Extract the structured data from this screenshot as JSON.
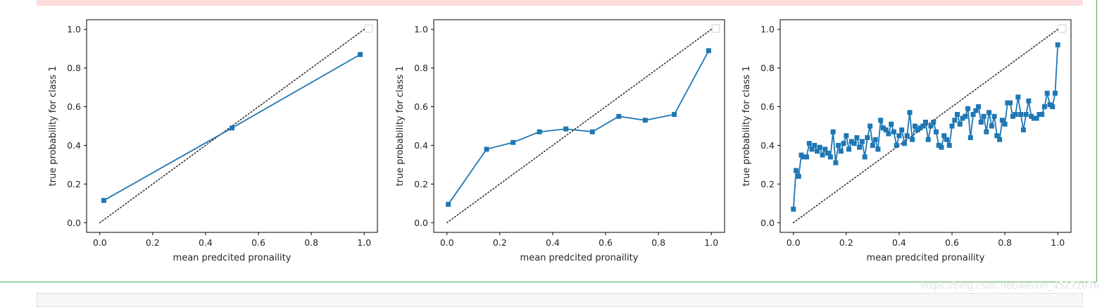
{
  "watermark": "https://blog.csdn.net/weixin_45271076",
  "colors": {
    "series": "#1f77b4",
    "reference": "#333333",
    "frame": "#4caf50",
    "warning": "#fddddd"
  },
  "chart_data": [
    {
      "type": "line",
      "xlabel": "mean predcited pronaility",
      "ylabel": "true probability for class 1",
      "xlim": [
        -0.05,
        1.05
      ],
      "ylim": [
        -0.05,
        1.05
      ],
      "xticks": [
        "0.0",
        "0.2",
        "0.4",
        "0.6",
        "0.8",
        "1.0"
      ],
      "yticks": [
        "0.0",
        "0.2",
        "0.4",
        "0.6",
        "0.8",
        "1.0"
      ],
      "legend": "top-right (empty)",
      "reference_line": {
        "style": "dotted",
        "x": [
          0,
          1
        ],
        "y": [
          0,
          1
        ]
      },
      "series": [
        {
          "marker": "square",
          "x": [
            0.015,
            0.5,
            0.985
          ],
          "y": [
            0.115,
            0.49,
            0.87
          ]
        }
      ]
    },
    {
      "type": "line",
      "xlabel": "mean predcited pronaility",
      "ylabel": "true probability for class 1",
      "xlim": [
        -0.05,
        1.05
      ],
      "ylim": [
        -0.05,
        1.05
      ],
      "xticks": [
        "0.0",
        "0.2",
        "0.4",
        "0.6",
        "0.8",
        "1.0"
      ],
      "yticks": [
        "0.0",
        "0.2",
        "0.4",
        "0.6",
        "0.8",
        "1.0"
      ],
      "legend": "top-right (empty)",
      "reference_line": {
        "style": "dotted",
        "x": [
          0,
          1
        ],
        "y": [
          0,
          1
        ]
      },
      "series": [
        {
          "marker": "square",
          "x": [
            0.005,
            0.15,
            0.25,
            0.35,
            0.45,
            0.55,
            0.65,
            0.75,
            0.86,
            0.99
          ],
          "y": [
            0.095,
            0.38,
            0.415,
            0.47,
            0.485,
            0.47,
            0.55,
            0.53,
            0.56,
            0.89
          ]
        }
      ]
    },
    {
      "type": "line",
      "xlabel": "mean predcited pronaility",
      "ylabel": "true probability for class 1",
      "xlim": [
        -0.05,
        1.05
      ],
      "ylim": [
        -0.05,
        1.05
      ],
      "xticks": [
        "0.0",
        "0.2",
        "0.4",
        "0.6",
        "0.8",
        "1.0"
      ],
      "yticks": [
        "0.0",
        "0.2",
        "0.4",
        "0.6",
        "0.8",
        "1.0"
      ],
      "legend": "top-right (empty)",
      "reference_line": {
        "style": "dotted",
        "x": [
          0,
          1
        ],
        "y": [
          0,
          1
        ]
      },
      "series": [
        {
          "marker": "square",
          "x": [
            0.0,
            0.01,
            0.02,
            0.03,
            0.04,
            0.05,
            0.06,
            0.07,
            0.08,
            0.09,
            0.1,
            0.11,
            0.12,
            0.13,
            0.14,
            0.15,
            0.16,
            0.17,
            0.18,
            0.19,
            0.2,
            0.21,
            0.22,
            0.23,
            0.24,
            0.25,
            0.26,
            0.27,
            0.28,
            0.29,
            0.3,
            0.31,
            0.32,
            0.33,
            0.34,
            0.35,
            0.36,
            0.37,
            0.38,
            0.39,
            0.4,
            0.41,
            0.42,
            0.43,
            0.44,
            0.45,
            0.46,
            0.47,
            0.48,
            0.49,
            0.5,
            0.51,
            0.52,
            0.53,
            0.54,
            0.55,
            0.56,
            0.57,
            0.58,
            0.59,
            0.6,
            0.61,
            0.62,
            0.63,
            0.64,
            0.65,
            0.66,
            0.67,
            0.68,
            0.69,
            0.7,
            0.71,
            0.72,
            0.73,
            0.74,
            0.75,
            0.76,
            0.77,
            0.78,
            0.79,
            0.8,
            0.81,
            0.82,
            0.83,
            0.84,
            0.85,
            0.86,
            0.87,
            0.88,
            0.89,
            0.9,
            0.91,
            0.92,
            0.93,
            0.94,
            0.95,
            0.96,
            0.97,
            0.98,
            0.99,
            1.0
          ],
          "y": [
            0.07,
            0.27,
            0.24,
            0.35,
            0.34,
            0.34,
            0.41,
            0.38,
            0.4,
            0.37,
            0.39,
            0.35,
            0.38,
            0.36,
            0.34,
            0.47,
            0.31,
            0.4,
            0.37,
            0.41,
            0.45,
            0.38,
            0.42,
            0.41,
            0.44,
            0.39,
            0.42,
            0.34,
            0.44,
            0.5,
            0.4,
            0.43,
            0.38,
            0.53,
            0.49,
            0.48,
            0.46,
            0.51,
            0.47,
            0.4,
            0.45,
            0.48,
            0.41,
            0.45,
            0.57,
            0.43,
            0.5,
            0.48,
            0.49,
            0.5,
            0.52,
            0.43,
            0.5,
            0.52,
            0.47,
            0.4,
            0.39,
            0.45,
            0.43,
            0.4,
            0.5,
            0.53,
            0.56,
            0.51,
            0.54,
            0.55,
            0.59,
            0.44,
            0.56,
            0.58,
            0.6,
            0.52,
            0.55,
            0.47,
            0.57,
            0.5,
            0.55,
            0.45,
            0.43,
            0.53,
            0.51,
            0.62,
            0.62,
            0.55,
            0.56,
            0.65,
            0.56,
            0.48,
            0.56,
            0.63,
            0.55,
            0.54,
            0.54,
            0.56,
            0.56,
            0.6,
            0.67,
            0.61,
            0.6,
            0.67,
            0.92
          ]
        }
      ]
    }
  ]
}
